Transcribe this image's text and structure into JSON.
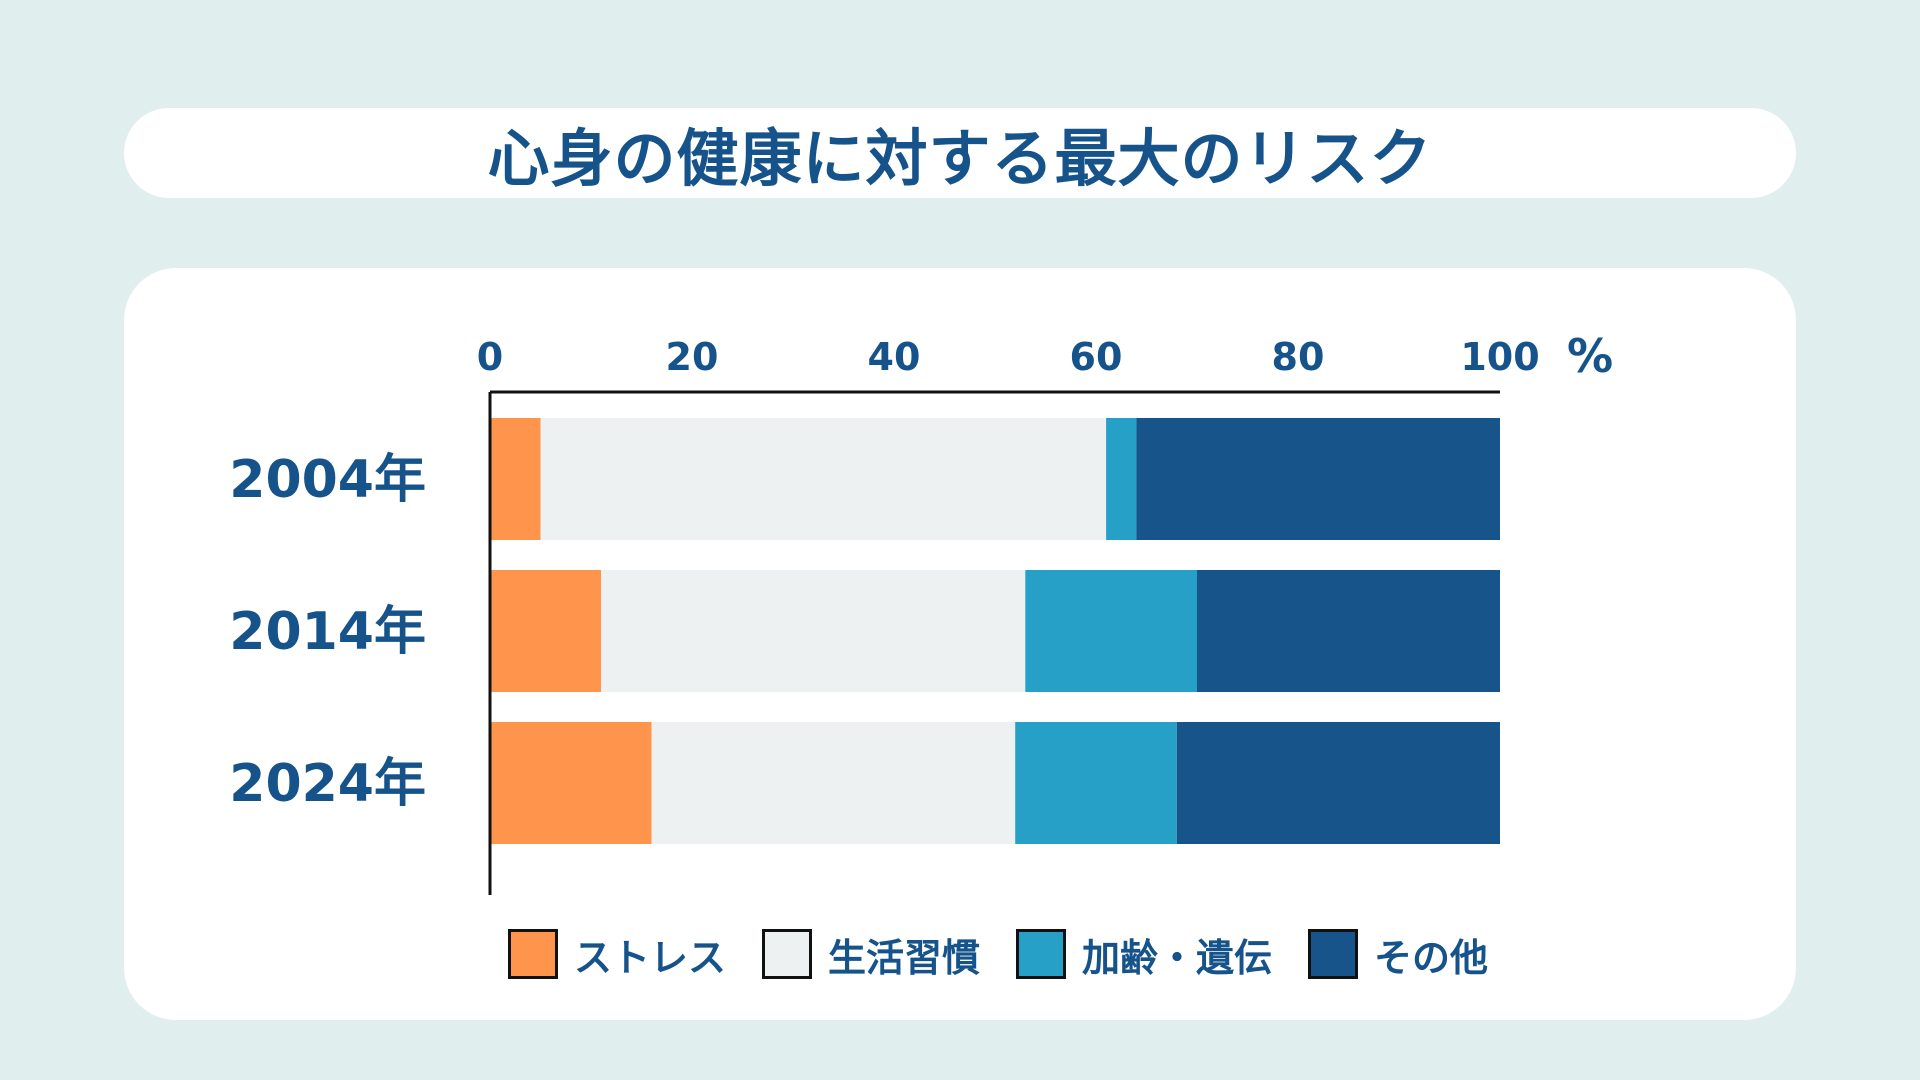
{
  "title": "心身の健康に対する最大のリスク",
  "colors": {
    "stress": "#ff944d",
    "lifestyle": "#edf1f2",
    "aging": "#26a0c7",
    "other": "#16548a",
    "text": "#16538a",
    "axis": "#111111"
  },
  "chart_data": {
    "type": "bar",
    "orientation": "horizontal",
    "stacked": true,
    "title": "心身の健康に対する最大のリスク",
    "unit": "%",
    "xlim": [
      0,
      100
    ],
    "xticks": [
      "0",
      "20",
      "40",
      "60",
      "80",
      "100"
    ],
    "categories": [
      "2004年",
      "2014年",
      "2024年"
    ],
    "series": [
      {
        "name": "ストレス",
        "color": "#ff944d",
        "values": [
          5,
          11,
          16
        ]
      },
      {
        "name": "生活習慣",
        "color": "#edf1f2",
        "values": [
          56,
          42,
          36
        ]
      },
      {
        "name": "加齢・遺伝",
        "color": "#26a0c7",
        "values": [
          3,
          17,
          16
        ]
      },
      {
        "name": "その他",
        "color": "#16548a",
        "values": [
          36,
          30,
          32
        ]
      }
    ],
    "legend_position": "bottom",
    "grid": false
  }
}
